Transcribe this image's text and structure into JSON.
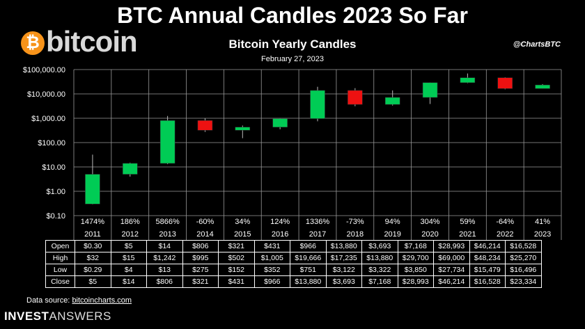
{
  "headline": "BTC Annual Candles 2023 So Far",
  "logo": {
    "symbol": "₿",
    "word": "bitcoin",
    "color": "#f7931a"
  },
  "handle": "@ChartsBTC",
  "source_label": "Data source:",
  "source_link": "bitcoincharts.com",
  "brand_bold": "INVEST",
  "brand_rest": "ANSWERS",
  "colors": {
    "up": "#00cc55",
    "down": "#ee1111",
    "grid": "#9a9a9a",
    "background": "#000000"
  },
  "chart_data": {
    "type": "candlestick",
    "title": "Bitcoin Yearly Candles",
    "subtitle": "February 27, 2023",
    "y_scale": "log",
    "ylim": [
      0.1,
      100000
    ],
    "y_ticks": [
      "$100,000.00",
      "$10,000.00",
      "$1,000.00",
      "$100.00",
      "$10.00",
      "$1.00",
      "$0.10"
    ],
    "grid": true,
    "years": [
      "2011",
      "2012",
      "2013",
      "2014",
      "2015",
      "2016",
      "2017",
      "2018",
      "2019",
      "2020",
      "2021",
      "2022",
      "2023"
    ],
    "changes": [
      "1474%",
      "186%",
      "5866%",
      "-60%",
      "34%",
      "124%",
      "1336%",
      "-73%",
      "94%",
      "304%",
      "59%",
      "-64%",
      "41%"
    ],
    "open": [
      0.3,
      5,
      14,
      806,
      321,
      431,
      966,
      13880,
      3693,
      7168,
      28993,
      46214,
      16528
    ],
    "high": [
      32,
      15,
      1242,
      995,
      502,
      1005,
      19666,
      17235,
      13880,
      29700,
      69000,
      48234,
      25270
    ],
    "low": [
      0.29,
      4,
      13,
      275,
      152,
      352,
      751,
      3122,
      3322,
      3850,
      27734,
      15479,
      16496
    ],
    "close": [
      5,
      14,
      806,
      321,
      431,
      966,
      13880,
      3693,
      7168,
      28993,
      46214,
      16528,
      23334
    ],
    "table": {
      "row_labels": [
        "Open",
        "High",
        "Low",
        "Close"
      ],
      "rows": [
        [
          "$0.30",
          "$5",
          "$14",
          "$806",
          "$321",
          "$431",
          "$966",
          "$13,880",
          "$3,693",
          "$7,168",
          "$28,993",
          "$46,214",
          "$16,528"
        ],
        [
          "$32",
          "$15",
          "$1,242",
          "$995",
          "$502",
          "$1,005",
          "$19,666",
          "$17,235",
          "$13,880",
          "$29,700",
          "$69,000",
          "$48,234",
          "$25,270"
        ],
        [
          "$0.29",
          "$4",
          "$13",
          "$275",
          "$152",
          "$352",
          "$751",
          "$3,122",
          "$3,322",
          "$3,850",
          "$27,734",
          "$15,479",
          "$16,496"
        ],
        [
          "$5",
          "$14",
          "$806",
          "$321",
          "$431",
          "$966",
          "$13,880",
          "$3,693",
          "$7,168",
          "$28,993",
          "$46,214",
          "$16,528",
          "$23,334"
        ]
      ]
    }
  }
}
